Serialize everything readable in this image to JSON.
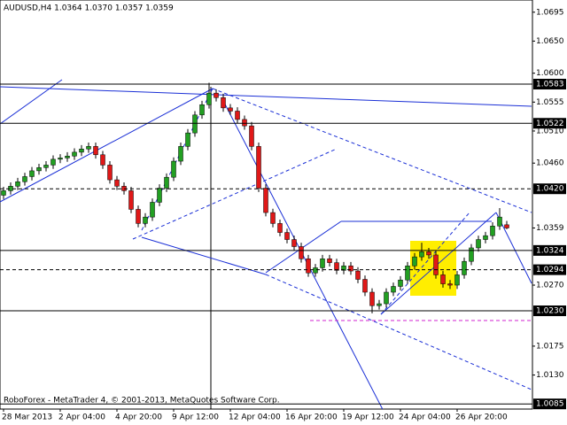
{
  "chart_data": {
    "type": "candlestick",
    "title": "AUDUSD,H4  1.0364 1.0370 1.0357 1.0359",
    "watermark": "RoboForex - MetaTrader 4, © 2001-2013, MetaQuotes Software Corp.",
    "categories": [
      "28 Mar 2013",
      null,
      null,
      null,
      null,
      null,
      null,
      null,
      "2 Apr 04:00",
      null,
      null,
      null,
      null,
      null,
      null,
      null,
      "4 Apr 20:00",
      null,
      null,
      null,
      null,
      null,
      null,
      null,
      "9 Apr 12:00",
      null,
      null,
      null,
      null,
      null,
      null,
      null,
      "12 Apr 04:00",
      null,
      null,
      null,
      null,
      null,
      null,
      null,
      "16 Apr 20:00",
      null,
      null,
      null,
      null,
      null,
      null,
      null,
      "19 Apr 12:00",
      null,
      null,
      null,
      null,
      null,
      null,
      null,
      "24 Apr 04:00",
      null,
      null,
      null,
      null,
      null,
      null,
      null,
      "26 Apr 20:00",
      null,
      null,
      null,
      null,
      null,
      null,
      null
    ],
    "open": [
      1.041,
      1.0417,
      1.0424,
      1.0431,
      1.0439,
      1.0448,
      1.0453,
      1.0457,
      1.0466,
      1.0468,
      1.0471,
      1.0477,
      1.0482,
      1.0486,
      1.0473,
      1.0457,
      1.0434,
      1.0424,
      1.0417,
      1.0388,
      1.0366,
      1.0376,
      1.0399,
      1.0421,
      1.0438,
      1.0463,
      1.0486,
      1.0507,
      1.0535,
      1.0551,
      1.0569,
      1.0562,
      1.0546,
      1.0541,
      1.0528,
      1.0518,
      1.0486,
      1.0421,
      1.0383,
      1.0366,
      1.0352,
      1.0341,
      1.033,
      1.0311,
      1.0289,
      1.0297,
      1.0311,
      1.0305,
      1.0293,
      1.03,
      1.0292,
      1.0279,
      1.0259,
      1.0238,
      1.0241,
      1.0259,
      1.0268,
      1.0278,
      1.03,
      1.0314,
      1.0322,
      1.0317,
      1.0286,
      1.0272,
      1.027,
      1.0286,
      1.0307,
      1.0328,
      1.0341,
      1.0347,
      1.0362,
      1.0364
    ],
    "high": [
      1.0423,
      1.043,
      1.0437,
      1.0445,
      1.0454,
      1.0459,
      1.0463,
      1.0472,
      1.0474,
      1.0477,
      1.0483,
      1.0488,
      1.0492,
      1.0492,
      1.0479,
      1.0463,
      1.044,
      1.043,
      1.0423,
      1.0394,
      1.0382,
      1.0405,
      1.0427,
      1.0444,
      1.0469,
      1.0492,
      1.0513,
      1.0541,
      1.0557,
      1.0585,
      1.0575,
      1.0568,
      1.0552,
      1.0547,
      1.0534,
      1.0524,
      1.0492,
      1.0427,
      1.0389,
      1.0372,
      1.0358,
      1.0347,
      1.0336,
      1.0317,
      1.0303,
      1.0317,
      1.0317,
      1.0311,
      1.0306,
      1.0306,
      1.0298,
      1.0285,
      1.0265,
      1.0247,
      1.0265,
      1.0274,
      1.0284,
      1.0306,
      1.032,
      1.0336,
      1.0328,
      1.0323,
      1.0292,
      1.0278,
      1.0292,
      1.0313,
      1.0334,
      1.0347,
      1.0353,
      1.0368,
      1.039,
      1.037
    ],
    "low": [
      1.0404,
      1.0411,
      1.0418,
      1.0425,
      1.0433,
      1.0442,
      1.0447,
      1.0451,
      1.046,
      1.0462,
      1.0465,
      1.0471,
      1.0476,
      1.0467,
      1.0451,
      1.0428,
      1.0418,
      1.0411,
      1.0382,
      1.036,
      1.036,
      1.037,
      1.0393,
      1.0415,
      1.0432,
      1.0457,
      1.048,
      1.0501,
      1.0529,
      1.0545,
      1.0556,
      1.054,
      1.0535,
      1.0522,
      1.0512,
      1.048,
      1.0415,
      1.0377,
      1.036,
      1.0346,
      1.0335,
      1.0324,
      1.0305,
      1.0283,
      1.0283,
      1.0291,
      1.0299,
      1.0287,
      1.0287,
      1.0286,
      1.0273,
      1.0253,
      1.0226,
      1.0232,
      1.0235,
      1.0253,
      1.0262,
      1.0272,
      1.0294,
      1.0308,
      1.0311,
      1.028,
      1.0266,
      1.0264,
      1.0264,
      1.028,
      1.0301,
      1.0322,
      1.0335,
      1.0341,
      1.0356,
      1.0357
    ],
    "close": [
      1.0417,
      1.0424,
      1.0431,
      1.0439,
      1.0448,
      1.0453,
      1.0457,
      1.0466,
      1.0468,
      1.0471,
      1.0477,
      1.0482,
      1.0486,
      1.0473,
      1.0457,
      1.0434,
      1.0424,
      1.0417,
      1.0388,
      1.0366,
      1.0376,
      1.0399,
      1.0421,
      1.0438,
      1.0463,
      1.0486,
      1.0507,
      1.0535,
      1.0551,
      1.0569,
      1.0562,
      1.0546,
      1.0541,
      1.0528,
      1.0518,
      1.0486,
      1.0421,
      1.0383,
      1.0366,
      1.0352,
      1.0341,
      1.033,
      1.0311,
      1.0289,
      1.0297,
      1.0311,
      1.0305,
      1.0293,
      1.03,
      1.0292,
      1.0279,
      1.0259,
      1.0238,
      1.0241,
      1.0259,
      1.0268,
      1.0278,
      1.03,
      1.0314,
      1.0322,
      1.0317,
      1.0286,
      1.0272,
      1.027,
      1.0286,
      1.0307,
      1.0328,
      1.0341,
      1.0347,
      1.0362,
      1.0376,
      1.0359
    ],
    "up_color": "#22a022",
    "down_color": "#e01818",
    "wick_color": "#000000",
    "ylim": [
      1.0077,
      1.0714
    ],
    "yticks": [
      1.0695,
      {
        "value": 1.065,
        "label": "1.0650"
      },
      {
        "value": 1.06,
        "label": "1.0600"
      },
      1.0555,
      {
        "value": 1.051,
        "label": "1.0510"
      },
      {
        "value": 1.046,
        "label": "1.0460"
      },
      1.0359,
      {
        "value": 1.027,
        "label": "1.0270"
      },
      1.0175,
      {
        "value": 1.013,
        "label": "1.0130"
      }
    ],
    "levels": [
      1.0583,
      1.0522,
      {
        "value": 1.042,
        "label": "1.0420"
      },
      1.0324,
      1.0294,
      {
        "value": 1.023,
        "label": "1.0230"
      },
      1.0085
    ],
    "level_dashed": [
      false,
      false,
      true,
      false,
      true,
      false,
      false
    ]
  }
}
